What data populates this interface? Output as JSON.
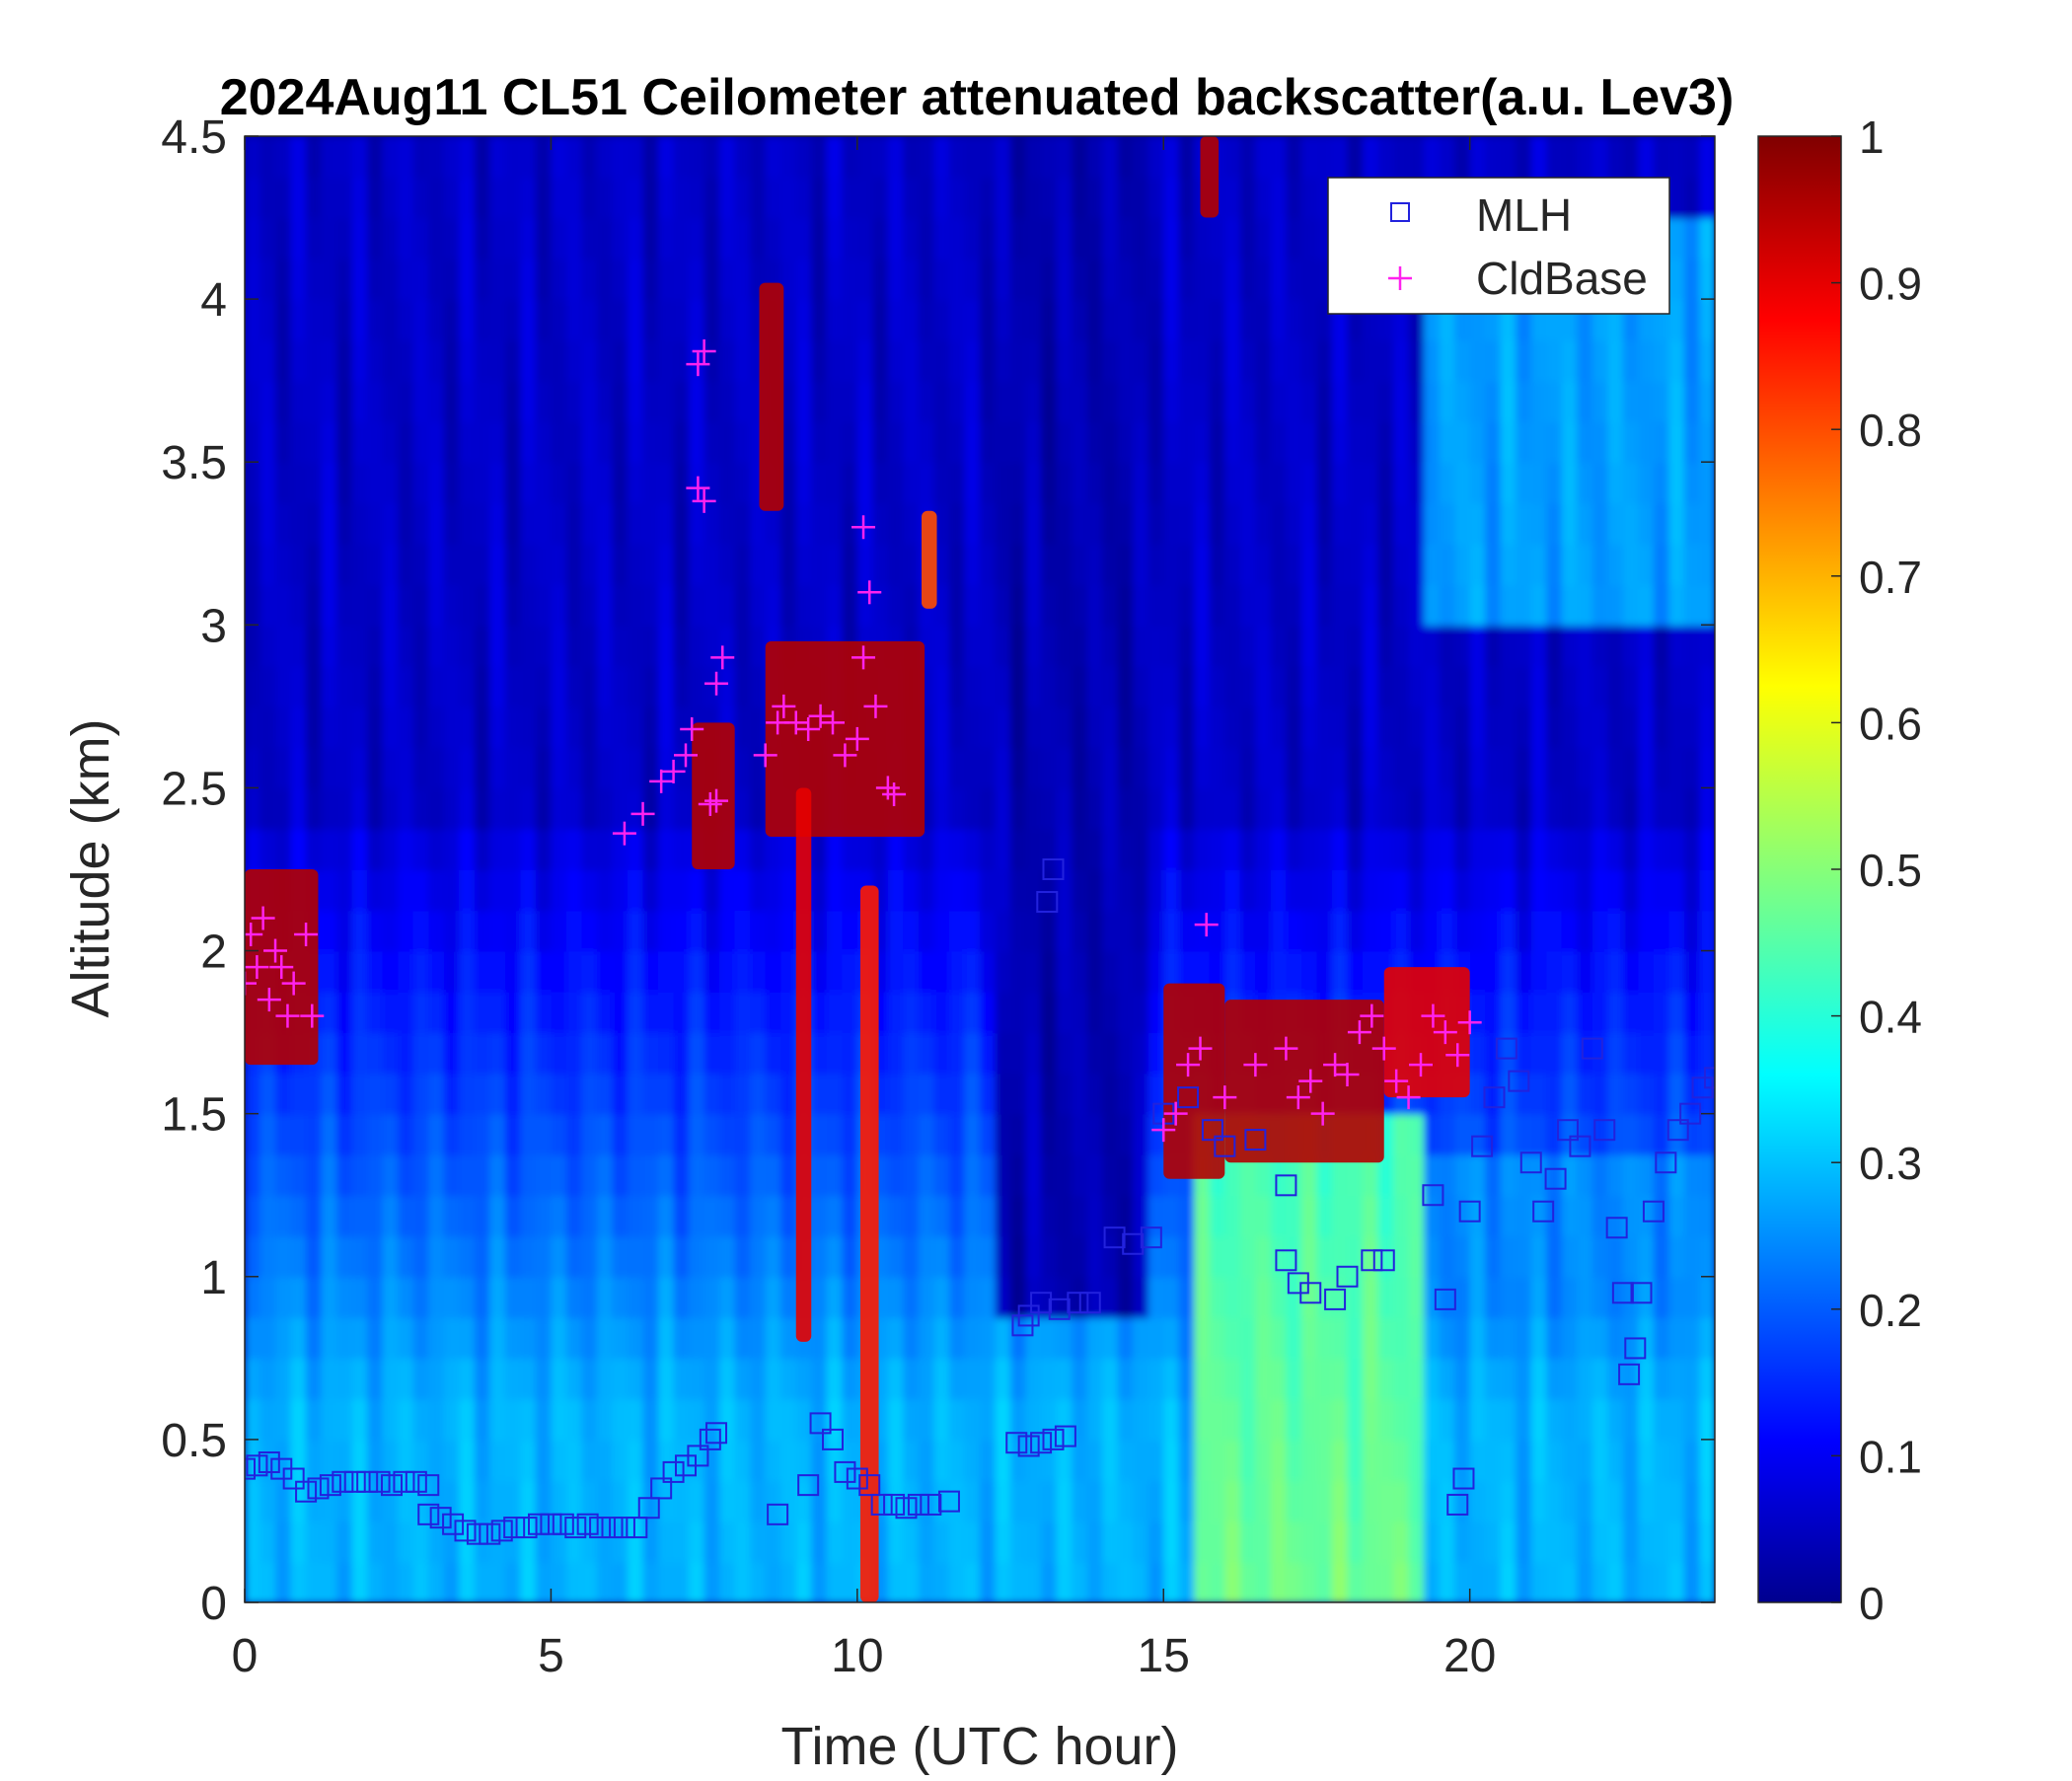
{
  "chart_data": {
    "type": "heatmap",
    "title": "2024Aug11 CL51 Ceilometer attenuated backscatter(a.u. Lev3)",
    "xlabel": "Time (UTC hour)",
    "ylabel": "Altitude (km)",
    "xlim": [
      0,
      24
    ],
    "ylim": [
      0,
      4.5
    ],
    "xticks": [
      0,
      5,
      10,
      15,
      20
    ],
    "yticks": [
      0,
      0.5,
      1,
      1.5,
      2,
      2.5,
      3,
      3.5,
      4,
      4.5
    ],
    "xtick_labels": [
      "0",
      "5",
      "10",
      "15",
      "20"
    ],
    "ytick_labels": [
      "0",
      "0.5",
      "1",
      "1.5",
      "2",
      "2.5",
      "3",
      "3.5",
      "4",
      "4.5"
    ],
    "colorbar": {
      "range": [
        0,
        1
      ],
      "ticks": [
        0,
        0.1,
        0.2,
        0.3,
        0.4,
        0.5,
        0.6,
        0.7,
        0.8,
        0.9,
        1
      ],
      "tick_labels": [
        "0",
        "0.1",
        "0.2",
        "0.3",
        "0.4",
        "0.5",
        "0.6",
        "0.7",
        "0.8",
        "0.9",
        "1"
      ],
      "colormap": "jet"
    },
    "legend": {
      "placement": "top-right",
      "entries": [
        {
          "name": "MLH",
          "marker": "square",
          "color": "#2222dd"
        },
        {
          "name": "CldBase",
          "marker": "plus",
          "color": "#ff22ee"
        }
      ]
    },
    "series": [
      {
        "name": "MLH",
        "marker": "square",
        "color": "#2222dd",
        "points": [
          [
            0.0,
            0.41
          ],
          [
            0.2,
            0.42
          ],
          [
            0.4,
            0.43
          ],
          [
            0.6,
            0.41
          ],
          [
            0.8,
            0.38
          ],
          [
            1.0,
            0.34
          ],
          [
            1.2,
            0.35
          ],
          [
            1.4,
            0.36
          ],
          [
            1.6,
            0.37
          ],
          [
            1.8,
            0.37
          ],
          [
            2.0,
            0.37
          ],
          [
            2.2,
            0.37
          ],
          [
            2.4,
            0.36
          ],
          [
            2.6,
            0.37
          ],
          [
            2.8,
            0.37
          ],
          [
            3.0,
            0.36
          ],
          [
            3.0,
            0.27
          ],
          [
            3.2,
            0.26
          ],
          [
            3.4,
            0.24
          ],
          [
            3.6,
            0.22
          ],
          [
            3.8,
            0.21
          ],
          [
            4.0,
            0.21
          ],
          [
            4.2,
            0.22
          ],
          [
            4.4,
            0.23
          ],
          [
            4.6,
            0.23
          ],
          [
            4.8,
            0.24
          ],
          [
            5.0,
            0.24
          ],
          [
            5.2,
            0.24
          ],
          [
            5.4,
            0.23
          ],
          [
            5.6,
            0.24
          ],
          [
            5.8,
            0.23
          ],
          [
            6.0,
            0.23
          ],
          [
            6.2,
            0.23
          ],
          [
            6.4,
            0.23
          ],
          [
            6.6,
            0.29
          ],
          [
            6.8,
            0.35
          ],
          [
            7.0,
            0.4
          ],
          [
            7.2,
            0.42
          ],
          [
            7.4,
            0.45
          ],
          [
            7.6,
            0.5
          ],
          [
            7.7,
            0.52
          ],
          [
            8.7,
            0.27
          ],
          [
            9.2,
            0.36
          ],
          [
            9.4,
            0.55
          ],
          [
            9.6,
            0.5
          ],
          [
            9.8,
            0.4
          ],
          [
            10.0,
            0.38
          ],
          [
            10.2,
            0.36
          ],
          [
            10.4,
            0.3
          ],
          [
            10.6,
            0.3
          ],
          [
            10.8,
            0.29
          ],
          [
            11.0,
            0.3
          ],
          [
            11.2,
            0.3
          ],
          [
            11.5,
            0.31
          ],
          [
            12.6,
            0.49
          ],
          [
            12.8,
            0.48
          ],
          [
            13.0,
            0.49
          ],
          [
            13.2,
            0.5
          ],
          [
            13.4,
            0.51
          ],
          [
            12.7,
            0.85
          ],
          [
            12.8,
            0.88
          ],
          [
            13.0,
            0.92
          ],
          [
            13.3,
            0.9
          ],
          [
            13.6,
            0.92
          ],
          [
            13.8,
            0.92
          ],
          [
            13.1,
            2.15
          ],
          [
            13.2,
            2.25
          ],
          [
            14.2,
            1.12
          ],
          [
            14.5,
            1.1
          ],
          [
            14.8,
            1.12
          ],
          [
            15.0,
            1.5
          ],
          [
            15.4,
            1.55
          ],
          [
            15.8,
            1.45
          ],
          [
            16.0,
            1.4
          ],
          [
            16.5,
            1.42
          ],
          [
            17.0,
            1.28
          ],
          [
            17.0,
            1.05
          ],
          [
            17.2,
            0.98
          ],
          [
            17.4,
            0.95
          ],
          [
            17.8,
            0.93
          ],
          [
            18.0,
            1.0
          ],
          [
            18.4,
            1.05
          ],
          [
            18.6,
            1.05
          ],
          [
            19.4,
            1.25
          ],
          [
            19.6,
            0.93
          ],
          [
            19.8,
            0.3
          ],
          [
            19.9,
            0.38
          ],
          [
            20.0,
            1.2
          ],
          [
            20.2,
            1.4
          ],
          [
            20.4,
            1.55
          ],
          [
            20.6,
            1.7
          ],
          [
            20.8,
            1.6
          ],
          [
            21.0,
            1.35
          ],
          [
            21.2,
            1.2
          ],
          [
            21.4,
            1.3
          ],
          [
            21.6,
            1.45
          ],
          [
            21.8,
            1.4
          ],
          [
            22.0,
            1.7
          ],
          [
            22.2,
            1.45
          ],
          [
            22.4,
            1.15
          ],
          [
            22.5,
            0.95
          ],
          [
            22.6,
            0.7
          ],
          [
            22.7,
            0.78
          ],
          [
            22.8,
            0.95
          ],
          [
            23.0,
            1.2
          ],
          [
            23.2,
            1.35
          ],
          [
            23.4,
            1.45
          ],
          [
            23.6,
            1.5
          ],
          [
            23.8,
            1.58
          ],
          [
            24.0,
            1.61
          ]
        ]
      },
      {
        "name": "CldBase",
        "marker": "plus",
        "color": "#ff22ee",
        "points": [
          [
            0.0,
            1.9
          ],
          [
            0.1,
            2.05
          ],
          [
            0.2,
            1.95
          ],
          [
            0.3,
            2.1
          ],
          [
            0.4,
            1.85
          ],
          [
            0.5,
            2.0
          ],
          [
            0.6,
            1.95
          ],
          [
            0.7,
            1.8
          ],
          [
            0.8,
            1.9
          ],
          [
            1.0,
            2.05
          ],
          [
            1.1,
            1.8
          ],
          [
            6.2,
            2.36
          ],
          [
            6.5,
            2.42
          ],
          [
            6.8,
            2.52
          ],
          [
            7.0,
            2.55
          ],
          [
            7.2,
            2.6
          ],
          [
            7.3,
            2.68
          ],
          [
            7.4,
            3.8
          ],
          [
            7.5,
            3.84
          ],
          [
            7.4,
            3.42
          ],
          [
            7.5,
            3.38
          ],
          [
            7.6,
            2.45
          ],
          [
            7.7,
            2.46
          ],
          [
            7.7,
            2.82
          ],
          [
            7.8,
            2.9
          ],
          [
            8.5,
            2.6
          ],
          [
            8.7,
            2.7
          ],
          [
            8.8,
            2.75
          ],
          [
            9.0,
            2.7
          ],
          [
            9.2,
            2.68
          ],
          [
            9.4,
            2.72
          ],
          [
            9.6,
            2.7
          ],
          [
            9.8,
            2.6
          ],
          [
            10.0,
            2.65
          ],
          [
            10.1,
            3.3
          ],
          [
            10.2,
            3.1
          ],
          [
            10.1,
            2.9
          ],
          [
            10.3,
            2.75
          ],
          [
            10.5,
            2.5
          ],
          [
            10.6,
            2.48
          ],
          [
            15.0,
            1.45
          ],
          [
            15.2,
            1.5
          ],
          [
            15.4,
            1.65
          ],
          [
            15.6,
            1.7
          ],
          [
            15.7,
            2.08
          ],
          [
            16.0,
            1.55
          ],
          [
            16.5,
            1.65
          ],
          [
            17.0,
            1.7
          ],
          [
            17.2,
            1.55
          ],
          [
            17.4,
            1.6
          ],
          [
            17.6,
            1.5
          ],
          [
            17.8,
            1.65
          ],
          [
            18.0,
            1.62
          ],
          [
            18.2,
            1.75
          ],
          [
            18.4,
            1.8
          ],
          [
            18.6,
            1.7
          ],
          [
            18.8,
            1.6
          ],
          [
            19.0,
            1.55
          ],
          [
            19.2,
            1.65
          ],
          [
            19.4,
            1.8
          ],
          [
            19.6,
            1.75
          ],
          [
            19.8,
            1.68
          ],
          [
            20.0,
            1.78
          ]
        ]
      }
    ],
    "bands": [
      {
        "x": [
          0.0,
          1.2
        ],
        "ylo": 1.65,
        "yhi": 2.25,
        "value": 0.95
      },
      {
        "x": [
          7.3,
          8.0
        ],
        "ylo": 2.25,
        "yhi": 2.7,
        "value": 0.95
      },
      {
        "x": [
          8.4,
          8.8
        ],
        "ylo": 3.35,
        "yhi": 4.05,
        "value": 0.95
      },
      {
        "x": [
          8.5,
          11.1
        ],
        "ylo": 2.35,
        "yhi": 2.95,
        "value": 0.95
      },
      {
        "x": [
          9.0,
          9.25
        ],
        "ylo": 0.8,
        "yhi": 2.5,
        "value": 0.9
      },
      {
        "x": [
          10.05,
          10.35
        ],
        "ylo": 0.0,
        "yhi": 2.2,
        "value": 0.85
      },
      {
        "x": [
          11.05,
          11.3
        ],
        "ylo": 3.05,
        "yhi": 3.35,
        "value": 0.8
      },
      {
        "x": [
          15.0,
          16.0
        ],
        "ylo": 1.3,
        "yhi": 1.9,
        "value": 0.95
      },
      {
        "x": [
          15.6,
          15.9
        ],
        "ylo": 4.25,
        "yhi": 4.5,
        "value": 0.95
      },
      {
        "x": [
          16.0,
          18.6
        ],
        "ylo": 1.35,
        "yhi": 1.85,
        "value": 0.95
      },
      {
        "x": [
          18.6,
          20.0
        ],
        "ylo": 1.55,
        "yhi": 1.95,
        "value": 0.9
      }
    ]
  }
}
